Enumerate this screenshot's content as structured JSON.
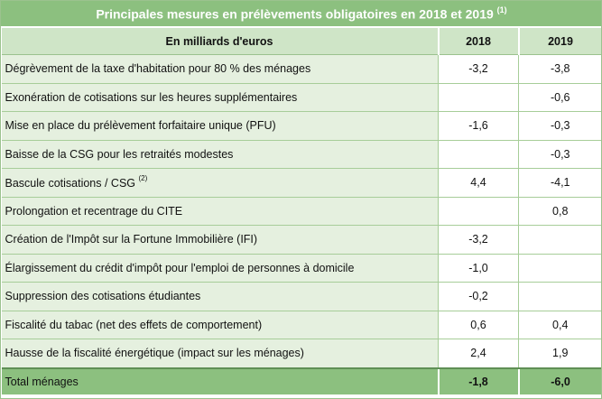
{
  "title": "Principales mesures en prélèvements obligatoires en 2018 et 2019",
  "title_note": "(1)",
  "header": {
    "unit": "En milliards d'euros",
    "col_2018": "2018",
    "col_2019": "2019"
  },
  "rows": [
    {
      "label": "Dégrèvement de la taxe d'habitation pour 80 %  des ménages",
      "note": "",
      "v2018": "-3,2",
      "v2019": "-3,8"
    },
    {
      "label": "Exonération de cotisations sur les heures supplémentaires",
      "note": "",
      "v2018": "",
      "v2019": "-0,6"
    },
    {
      "label": "Mise en place du prélèvement forfaitaire unique (PFU)",
      "note": "",
      "v2018": "-1,6",
      "v2019": "-0,3"
    },
    {
      "label": "Baisse de la CSG pour les retraités modestes",
      "note": "",
      "v2018": "",
      "v2019": "-0,3"
    },
    {
      "label": "Bascule cotisations / CSG",
      "note": "(2)",
      "v2018": "4,4",
      "v2019": "-4,1"
    },
    {
      "label": "Prolongation et recentrage du CITE",
      "note": "",
      "v2018": "",
      "v2019": "0,8"
    },
    {
      "label": "Création de l'Impôt sur la Fortune Immobilière (IFI)",
      "note": "",
      "v2018": "-3,2",
      "v2019": ""
    },
    {
      "label": "Élargissement du crédit d'impôt pour l'emploi de personnes à domicile",
      "note": "",
      "v2018": "-1,0",
      "v2019": ""
    },
    {
      "label": "Suppression des cotisations étudiantes",
      "note": "",
      "v2018": "-0,2",
      "v2019": ""
    },
    {
      "label": "Fiscalité du tabac (net des effets de comportement)",
      "note": "",
      "v2018": "0,6",
      "v2019": "0,4"
    },
    {
      "label": "Hausse de la fiscalité énergétique (impact sur les ménages)",
      "note": "",
      "v2018": "2,4",
      "v2019": "1,9"
    }
  ],
  "total": {
    "label": "Total ménages",
    "v2018": "-1,8",
    "v2019": "-6,0"
  }
}
